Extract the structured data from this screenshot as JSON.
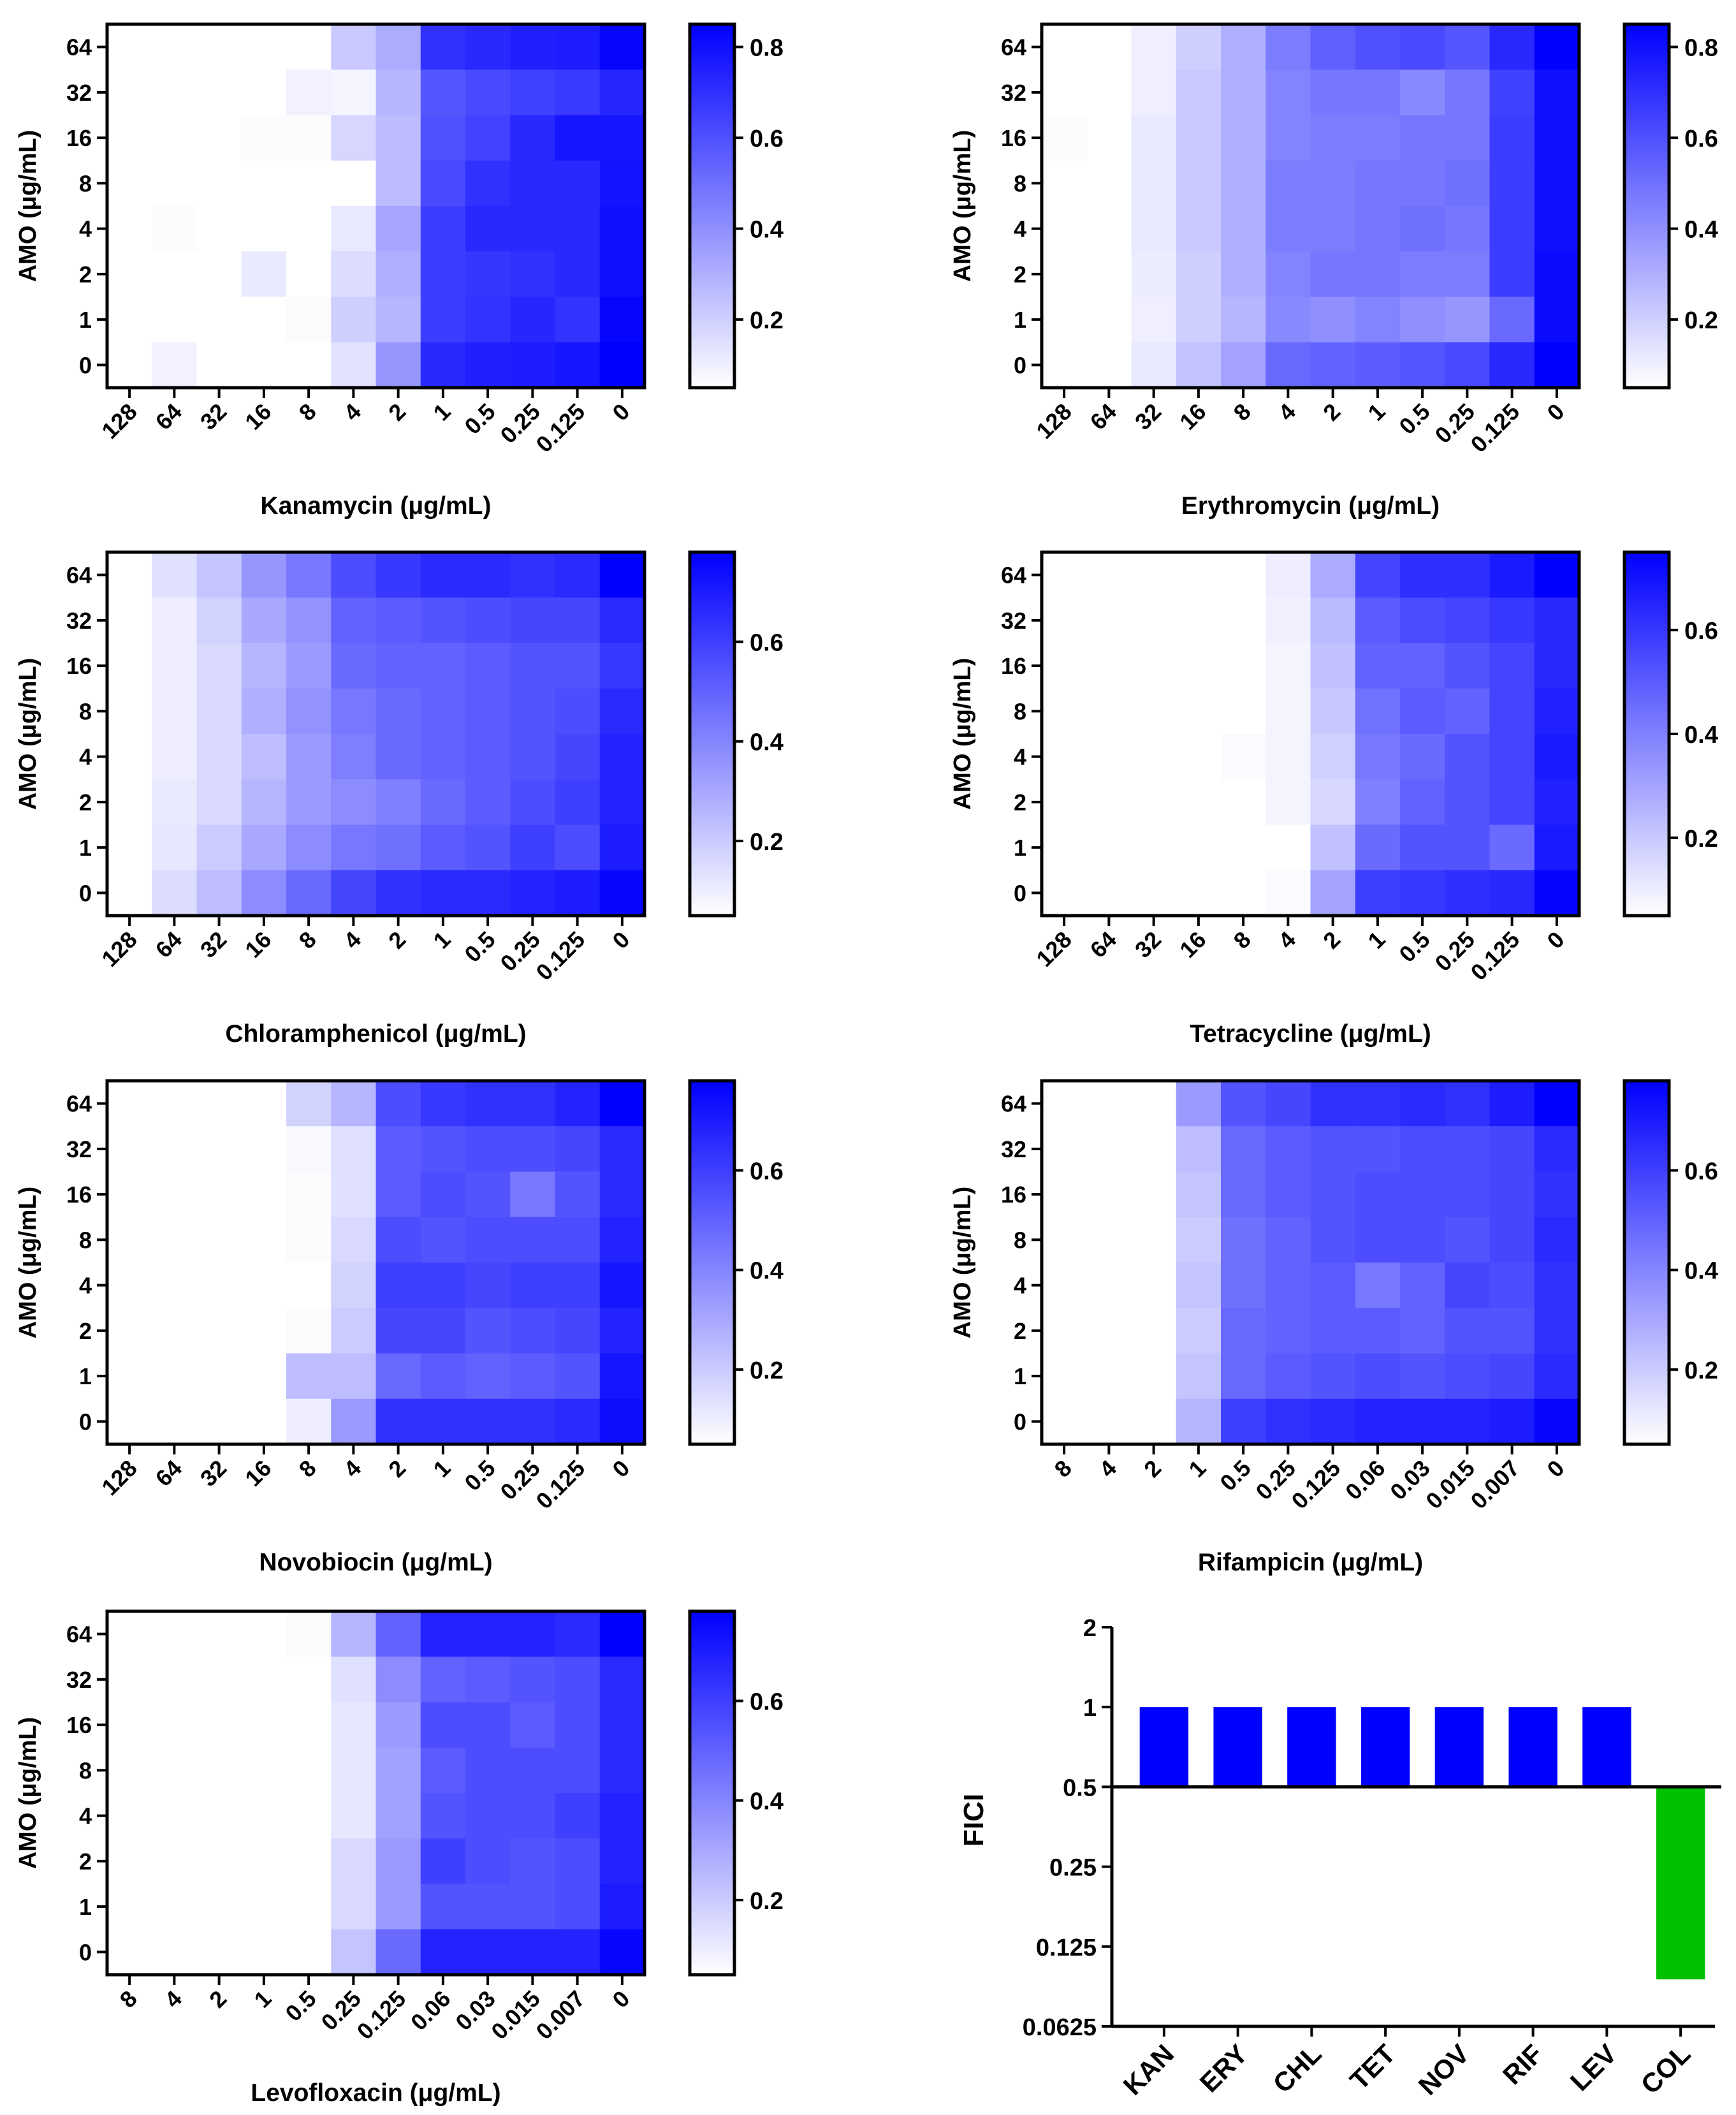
{
  "colors": {
    "heat_low": "#ffffff",
    "heat_high": "#0000ff",
    "fici_synergy": "#00c000",
    "fici_other": "#0000ff",
    "axis": "#000000"
  },
  "chart_data": [
    {
      "type": "heatmap",
      "id": "kan",
      "xlabel": "Kanamycin (μg/mL)",
      "ylabel": "AMO (μg/mL)",
      "x_ticks": [
        "128",
        "64",
        "32",
        "16",
        "8",
        "4",
        "2",
        "1",
        "0.5",
        "0.25",
        "0.125",
        "0"
      ],
      "y_ticks": [
        "64",
        "32",
        "16",
        "8",
        "4",
        "2",
        "1",
        "0"
      ],
      "colorbar": {
        "min": 0.05,
        "max": 0.85,
        "ticks": [
          "0.8",
          "0.6",
          "0.4",
          "0.2"
        ],
        "tick_values": [
          0.8,
          0.6,
          0.4,
          0.2
        ]
      },
      "values": [
        [
          0.04,
          0.05,
          0.04,
          0.04,
          0.04,
          0.22,
          0.31,
          0.7,
          0.72,
          0.75,
          0.76,
          0.83
        ],
        [
          0.05,
          0.05,
          0.05,
          0.05,
          0.09,
          0.08,
          0.28,
          0.58,
          0.62,
          0.65,
          0.67,
          0.73
        ],
        [
          0.04,
          0.05,
          0.05,
          0.06,
          0.06,
          0.18,
          0.26,
          0.6,
          0.64,
          0.72,
          0.78,
          0.78
        ],
        [
          0.04,
          0.05,
          0.05,
          0.05,
          0.04,
          0.04,
          0.26,
          0.62,
          0.7,
          0.72,
          0.72,
          0.79
        ],
        [
          0.04,
          0.06,
          0.05,
          0.05,
          0.05,
          0.12,
          0.33,
          0.66,
          0.72,
          0.72,
          0.72,
          0.8
        ],
        [
          0.04,
          0.04,
          0.05,
          0.12,
          0.05,
          0.16,
          0.3,
          0.66,
          0.68,
          0.7,
          0.72,
          0.8
        ],
        [
          0.04,
          0.05,
          0.05,
          0.05,
          0.06,
          0.2,
          0.28,
          0.66,
          0.69,
          0.73,
          0.69,
          0.83
        ],
        [
          0.04,
          0.09,
          0.05,
          0.05,
          0.05,
          0.14,
          0.38,
          0.72,
          0.75,
          0.76,
          0.78,
          0.86
        ]
      ]
    },
    {
      "type": "heatmap",
      "id": "ery",
      "xlabel": "Erythromycin (μg/mL)",
      "ylabel": "AMO (μg/mL)",
      "x_ticks": [
        "128",
        "64",
        "32",
        "16",
        "8",
        "4",
        "2",
        "1",
        "0.5",
        "0.25",
        "0.125",
        "0"
      ],
      "y_ticks": [
        "64",
        "32",
        "16",
        "8",
        "4",
        "2",
        "1",
        "0"
      ],
      "colorbar": {
        "min": 0.05,
        "max": 0.85,
        "ticks": [
          "0.8",
          "0.6",
          "0.4",
          "0.2"
        ],
        "tick_values": [
          0.8,
          0.6,
          0.4,
          0.2
        ]
      },
      "values": [
        [
          0.04,
          0.05,
          0.1,
          0.2,
          0.3,
          0.46,
          0.55,
          0.6,
          0.62,
          0.58,
          0.72,
          0.86
        ],
        [
          0.04,
          0.05,
          0.1,
          0.22,
          0.3,
          0.44,
          0.48,
          0.48,
          0.42,
          0.48,
          0.65,
          0.8
        ],
        [
          0.06,
          0.05,
          0.12,
          0.22,
          0.3,
          0.44,
          0.46,
          0.46,
          0.48,
          0.48,
          0.66,
          0.8
        ],
        [
          0.05,
          0.05,
          0.12,
          0.22,
          0.3,
          0.46,
          0.46,
          0.48,
          0.48,
          0.5,
          0.66,
          0.8
        ],
        [
          0.05,
          0.05,
          0.12,
          0.22,
          0.3,
          0.46,
          0.46,
          0.48,
          0.5,
          0.48,
          0.66,
          0.8
        ],
        [
          0.05,
          0.05,
          0.11,
          0.2,
          0.3,
          0.44,
          0.48,
          0.48,
          0.46,
          0.46,
          0.66,
          0.82
        ],
        [
          0.05,
          0.05,
          0.1,
          0.2,
          0.28,
          0.42,
          0.4,
          0.44,
          0.4,
          0.38,
          0.52,
          0.82
        ],
        [
          0.05,
          0.05,
          0.12,
          0.24,
          0.34,
          0.52,
          0.54,
          0.56,
          0.58,
          0.62,
          0.72,
          0.86
        ]
      ]
    },
    {
      "type": "heatmap",
      "id": "chl",
      "xlabel": "Chloramphenicol (μg/mL)",
      "ylabel": "AMO (μg/mL)",
      "x_ticks": [
        "128",
        "64",
        "32",
        "16",
        "8",
        "4",
        "2",
        "1",
        "0.5",
        "0.25",
        "0.125",
        "0"
      ],
      "y_ticks": [
        "64",
        "32",
        "16",
        "8",
        "4",
        "2",
        "1",
        "0"
      ],
      "colorbar": {
        "min": 0.05,
        "max": 0.78,
        "ticks": [
          "0.6",
          "0.4",
          "0.2"
        ],
        "tick_values": [
          0.6,
          0.4,
          0.2
        ]
      },
      "values": [
        [
          0.04,
          0.14,
          0.22,
          0.35,
          0.44,
          0.56,
          0.62,
          0.66,
          0.66,
          0.64,
          0.66,
          0.8
        ],
        [
          0.04,
          0.1,
          0.18,
          0.3,
          0.36,
          0.5,
          0.52,
          0.54,
          0.56,
          0.58,
          0.58,
          0.66
        ],
        [
          0.04,
          0.1,
          0.16,
          0.26,
          0.34,
          0.48,
          0.5,
          0.5,
          0.52,
          0.54,
          0.54,
          0.62
        ],
        [
          0.04,
          0.1,
          0.16,
          0.28,
          0.36,
          0.44,
          0.48,
          0.5,
          0.52,
          0.54,
          0.56,
          0.66
        ],
        [
          0.04,
          0.1,
          0.16,
          0.24,
          0.34,
          0.42,
          0.48,
          0.5,
          0.52,
          0.54,
          0.58,
          0.68
        ],
        [
          0.04,
          0.11,
          0.16,
          0.26,
          0.34,
          0.38,
          0.42,
          0.48,
          0.52,
          0.56,
          0.6,
          0.68
        ],
        [
          0.04,
          0.12,
          0.2,
          0.3,
          0.38,
          0.44,
          0.46,
          0.52,
          0.54,
          0.6,
          0.56,
          0.7
        ],
        [
          0.04,
          0.15,
          0.24,
          0.38,
          0.48,
          0.58,
          0.64,
          0.66,
          0.66,
          0.68,
          0.7,
          0.76
        ]
      ]
    },
    {
      "type": "heatmap",
      "id": "tet",
      "xlabel": "Tetracycline (μg/mL)",
      "ylabel": "AMO (μg/mL)",
      "x_ticks": [
        "128",
        "64",
        "32",
        "16",
        "8",
        "4",
        "2",
        "1",
        "0.5",
        "0.25",
        "0.125",
        "0"
      ],
      "y_ticks": [
        "64",
        "32",
        "16",
        "8",
        "4",
        "2",
        "1",
        "0"
      ],
      "colorbar": {
        "min": 0.05,
        "max": 0.75,
        "ticks": [
          "0.6",
          "0.4",
          "0.2"
        ],
        "tick_values": [
          0.6,
          0.4,
          0.2
        ]
      },
      "values": [
        [
          0.04,
          0.04,
          0.03,
          0.03,
          0.04,
          0.1,
          0.28,
          0.56,
          0.62,
          0.62,
          0.68,
          0.76
        ],
        [
          0.04,
          0.04,
          0.03,
          0.03,
          0.04,
          0.09,
          0.24,
          0.5,
          0.54,
          0.56,
          0.6,
          0.64
        ],
        [
          0.04,
          0.04,
          0.03,
          0.03,
          0.05,
          0.08,
          0.22,
          0.48,
          0.48,
          0.52,
          0.56,
          0.64
        ],
        [
          0.04,
          0.03,
          0.03,
          0.03,
          0.03,
          0.08,
          0.2,
          0.44,
          0.5,
          0.48,
          0.56,
          0.66
        ],
        [
          0.04,
          0.03,
          0.03,
          0.03,
          0.06,
          0.08,
          0.18,
          0.42,
          0.46,
          0.52,
          0.56,
          0.68
        ],
        [
          0.04,
          0.03,
          0.03,
          0.03,
          0.03,
          0.08,
          0.16,
          0.4,
          0.48,
          0.52,
          0.56,
          0.66
        ],
        [
          0.04,
          0.04,
          0.04,
          0.03,
          0.03,
          0.04,
          0.22,
          0.46,
          0.52,
          0.52,
          0.46,
          0.68
        ],
        [
          0.04,
          0.03,
          0.03,
          0.03,
          0.03,
          0.06,
          0.3,
          0.58,
          0.6,
          0.62,
          0.64,
          0.74
        ]
      ]
    },
    {
      "type": "heatmap",
      "id": "nov",
      "xlabel": "Novobiocin (μg/mL)",
      "ylabel": "AMO (μg/mL)",
      "x_ticks": [
        "128",
        "64",
        "32",
        "16",
        "8",
        "4",
        "2",
        "1",
        "0.5",
        "0.25",
        "0.125",
        "0"
      ],
      "y_ticks": [
        "64",
        "32",
        "16",
        "8",
        "4",
        "2",
        "1",
        "0"
      ],
      "colorbar": {
        "min": 0.05,
        "max": 0.78,
        "ticks": [
          "0.6",
          "0.4",
          "0.2"
        ],
        "tick_values": [
          0.6,
          0.4,
          0.2
        ]
      },
      "values": [
        [
          0.04,
          0.04,
          0.04,
          0.04,
          0.18,
          0.26,
          0.56,
          0.62,
          0.64,
          0.64,
          0.68,
          0.78
        ],
        [
          0.04,
          0.04,
          0.04,
          0.04,
          0.07,
          0.14,
          0.52,
          0.54,
          0.56,
          0.56,
          0.58,
          0.66
        ],
        [
          0.04,
          0.04,
          0.04,
          0.05,
          0.06,
          0.14,
          0.52,
          0.56,
          0.54,
          0.44,
          0.54,
          0.66
        ],
        [
          0.04,
          0.04,
          0.04,
          0.04,
          0.06,
          0.16,
          0.56,
          0.54,
          0.56,
          0.56,
          0.56,
          0.68
        ],
        [
          0.04,
          0.04,
          0.04,
          0.04,
          0.05,
          0.18,
          0.6,
          0.6,
          0.58,
          0.6,
          0.6,
          0.72
        ],
        [
          0.04,
          0.04,
          0.04,
          0.04,
          0.06,
          0.2,
          0.58,
          0.58,
          0.54,
          0.56,
          0.58,
          0.68
        ],
        [
          0.04,
          0.05,
          0.05,
          0.04,
          0.24,
          0.24,
          0.48,
          0.52,
          0.5,
          0.52,
          0.54,
          0.72
        ],
        [
          0.04,
          0.04,
          0.04,
          0.05,
          0.1,
          0.34,
          0.64,
          0.64,
          0.64,
          0.64,
          0.66,
          0.74
        ]
      ]
    },
    {
      "type": "heatmap",
      "id": "rif",
      "xlabel": "Rifampicin (μg/mL)",
      "ylabel": "AMO (μg/mL)",
      "x_ticks": [
        "8",
        "4",
        "2",
        "1",
        "0.5",
        "0.25",
        "0.125",
        "0.06",
        "0.03",
        "0.015",
        "0.007",
        "0"
      ],
      "y_ticks": [
        "64",
        "32",
        "16",
        "8",
        "4",
        "2",
        "1",
        "0"
      ],
      "colorbar": {
        "min": 0.05,
        "max": 0.78,
        "ticks": [
          "0.6",
          "0.4",
          "0.2"
        ],
        "tick_values": [
          0.6,
          0.4,
          0.2
        ]
      },
      "values": [
        [
          0.04,
          0.05,
          0.03,
          0.34,
          0.54,
          0.58,
          0.64,
          0.64,
          0.66,
          0.64,
          0.7,
          0.78
        ],
        [
          0.04,
          0.04,
          0.03,
          0.24,
          0.48,
          0.52,
          0.54,
          0.54,
          0.56,
          0.56,
          0.58,
          0.66
        ],
        [
          0.04,
          0.04,
          0.03,
          0.22,
          0.48,
          0.52,
          0.54,
          0.56,
          0.56,
          0.56,
          0.58,
          0.64
        ],
        [
          0.04,
          0.04,
          0.03,
          0.2,
          0.46,
          0.5,
          0.54,
          0.56,
          0.56,
          0.54,
          0.58,
          0.66
        ],
        [
          0.04,
          0.04,
          0.03,
          0.22,
          0.46,
          0.5,
          0.52,
          0.44,
          0.5,
          0.58,
          0.56,
          0.64
        ],
        [
          0.04,
          0.04,
          0.03,
          0.2,
          0.48,
          0.5,
          0.52,
          0.52,
          0.5,
          0.54,
          0.54,
          0.64
        ],
        [
          0.04,
          0.05,
          0.03,
          0.22,
          0.48,
          0.52,
          0.54,
          0.56,
          0.54,
          0.56,
          0.58,
          0.66
        ],
        [
          0.04,
          0.04,
          0.03,
          0.26,
          0.6,
          0.64,
          0.66,
          0.68,
          0.68,
          0.68,
          0.7,
          0.76
        ]
      ]
    },
    {
      "type": "heatmap",
      "id": "lev",
      "xlabel": "Levofloxacin (μg/mL)",
      "ylabel": "AMO (μg/mL)",
      "x_ticks": [
        "8",
        "4",
        "2",
        "1",
        "0.5",
        "0.25",
        "0.125",
        "0.06",
        "0.03",
        "0.015",
        "0.007",
        "0"
      ],
      "y_ticks": [
        "64",
        "32",
        "16",
        "8",
        "4",
        "2",
        "1",
        "0"
      ],
      "colorbar": {
        "min": 0.05,
        "max": 0.78,
        "ticks": [
          "0.6",
          "0.4",
          "0.2"
        ],
        "tick_values": [
          0.6,
          0.4,
          0.2
        ]
      },
      "values": [
        [
          0.04,
          0.04,
          0.04,
          0.04,
          0.06,
          0.26,
          0.5,
          0.68,
          0.68,
          0.68,
          0.66,
          0.78
        ],
        [
          0.04,
          0.04,
          0.04,
          0.04,
          0.04,
          0.14,
          0.38,
          0.5,
          0.52,
          0.54,
          0.56,
          0.66
        ],
        [
          0.04,
          0.04,
          0.04,
          0.04,
          0.04,
          0.12,
          0.34,
          0.56,
          0.56,
          0.52,
          0.56,
          0.66
        ],
        [
          0.05,
          0.04,
          0.04,
          0.04,
          0.04,
          0.12,
          0.32,
          0.52,
          0.56,
          0.56,
          0.56,
          0.66
        ],
        [
          0.05,
          0.04,
          0.04,
          0.04,
          0.04,
          0.12,
          0.32,
          0.54,
          0.56,
          0.56,
          0.6,
          0.68
        ],
        [
          0.05,
          0.04,
          0.04,
          0.04,
          0.04,
          0.16,
          0.34,
          0.6,
          0.56,
          0.54,
          0.56,
          0.68
        ],
        [
          0.05,
          0.05,
          0.05,
          0.04,
          0.04,
          0.16,
          0.34,
          0.54,
          0.54,
          0.54,
          0.56,
          0.7
        ],
        [
          0.04,
          0.04,
          0.04,
          0.04,
          0.04,
          0.22,
          0.48,
          0.68,
          0.68,
          0.68,
          0.68,
          0.76
        ]
      ]
    },
    {
      "type": "bar",
      "id": "fici",
      "ylabel": "FICI",
      "y_scale": "log2",
      "baseline": 0.5,
      "ylim": [
        0.0625,
        2
      ],
      "y_ticks": [
        "2",
        "1",
        "0.5",
        "0.25",
        "0.125",
        "0.0625"
      ],
      "y_tick_values": [
        2,
        1,
        0.5,
        0.25,
        0.125,
        0.0625
      ],
      "categories": [
        "KAN",
        "ERY",
        "CHL",
        "TET",
        "NOV",
        "RIF",
        "LEV",
        "COL"
      ],
      "values": [
        1,
        1,
        1,
        1,
        1,
        1,
        1,
        0.094
      ]
    }
  ]
}
